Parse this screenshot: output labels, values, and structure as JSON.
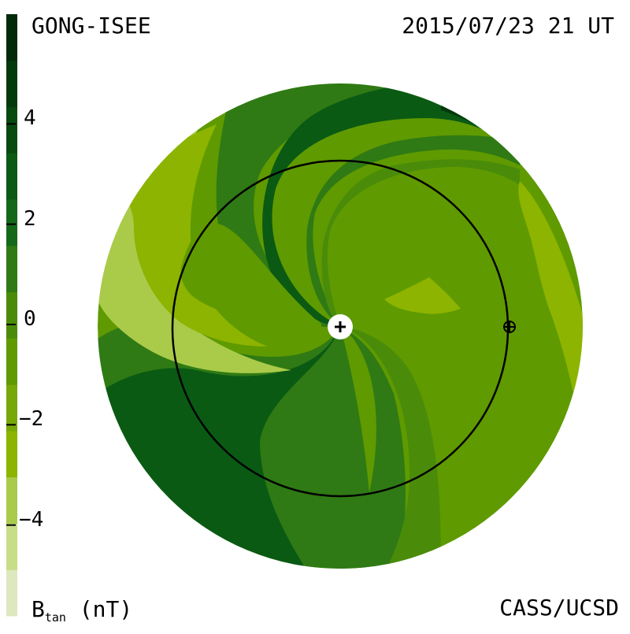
{
  "header": {
    "source": "GONG-ISEE",
    "timestamp": "2015/07/23 21 UT"
  },
  "footer": {
    "credit": "CASS/UCSD",
    "unit_label_main": "B",
    "unit_label_sub": "tan",
    "unit_label_suffix": " (nT)"
  },
  "colorbar": {
    "tick_labels": [
      "4",
      "2",
      "0",
      "−2",
      "−4"
    ],
    "tick_values": [
      4,
      2,
      0,
      -2,
      -4
    ],
    "range": [
      -6,
      6
    ],
    "colors": [
      "#dde8be",
      "#c8dd88",
      "#aacb4a",
      "#8cb400",
      "#76a808",
      "#5f9a00",
      "#4a8c0a",
      "#2f7a14",
      "#14681a",
      "#0a5a14",
      "#064a10",
      "#033a0c",
      "#022a08"
    ]
  },
  "map": {
    "earth_marker": "earth-symbol",
    "sun_marker": "sun-plus-symbol",
    "orbit": "earth-orbit-circle",
    "colors": {
      "lightest": "#aacb4a",
      "light": "#8cb400",
      "mid": "#5f9a00",
      "dark": "#2f7a14",
      "darker": "#0a5a14",
      "darkest": "#033a0c"
    }
  }
}
